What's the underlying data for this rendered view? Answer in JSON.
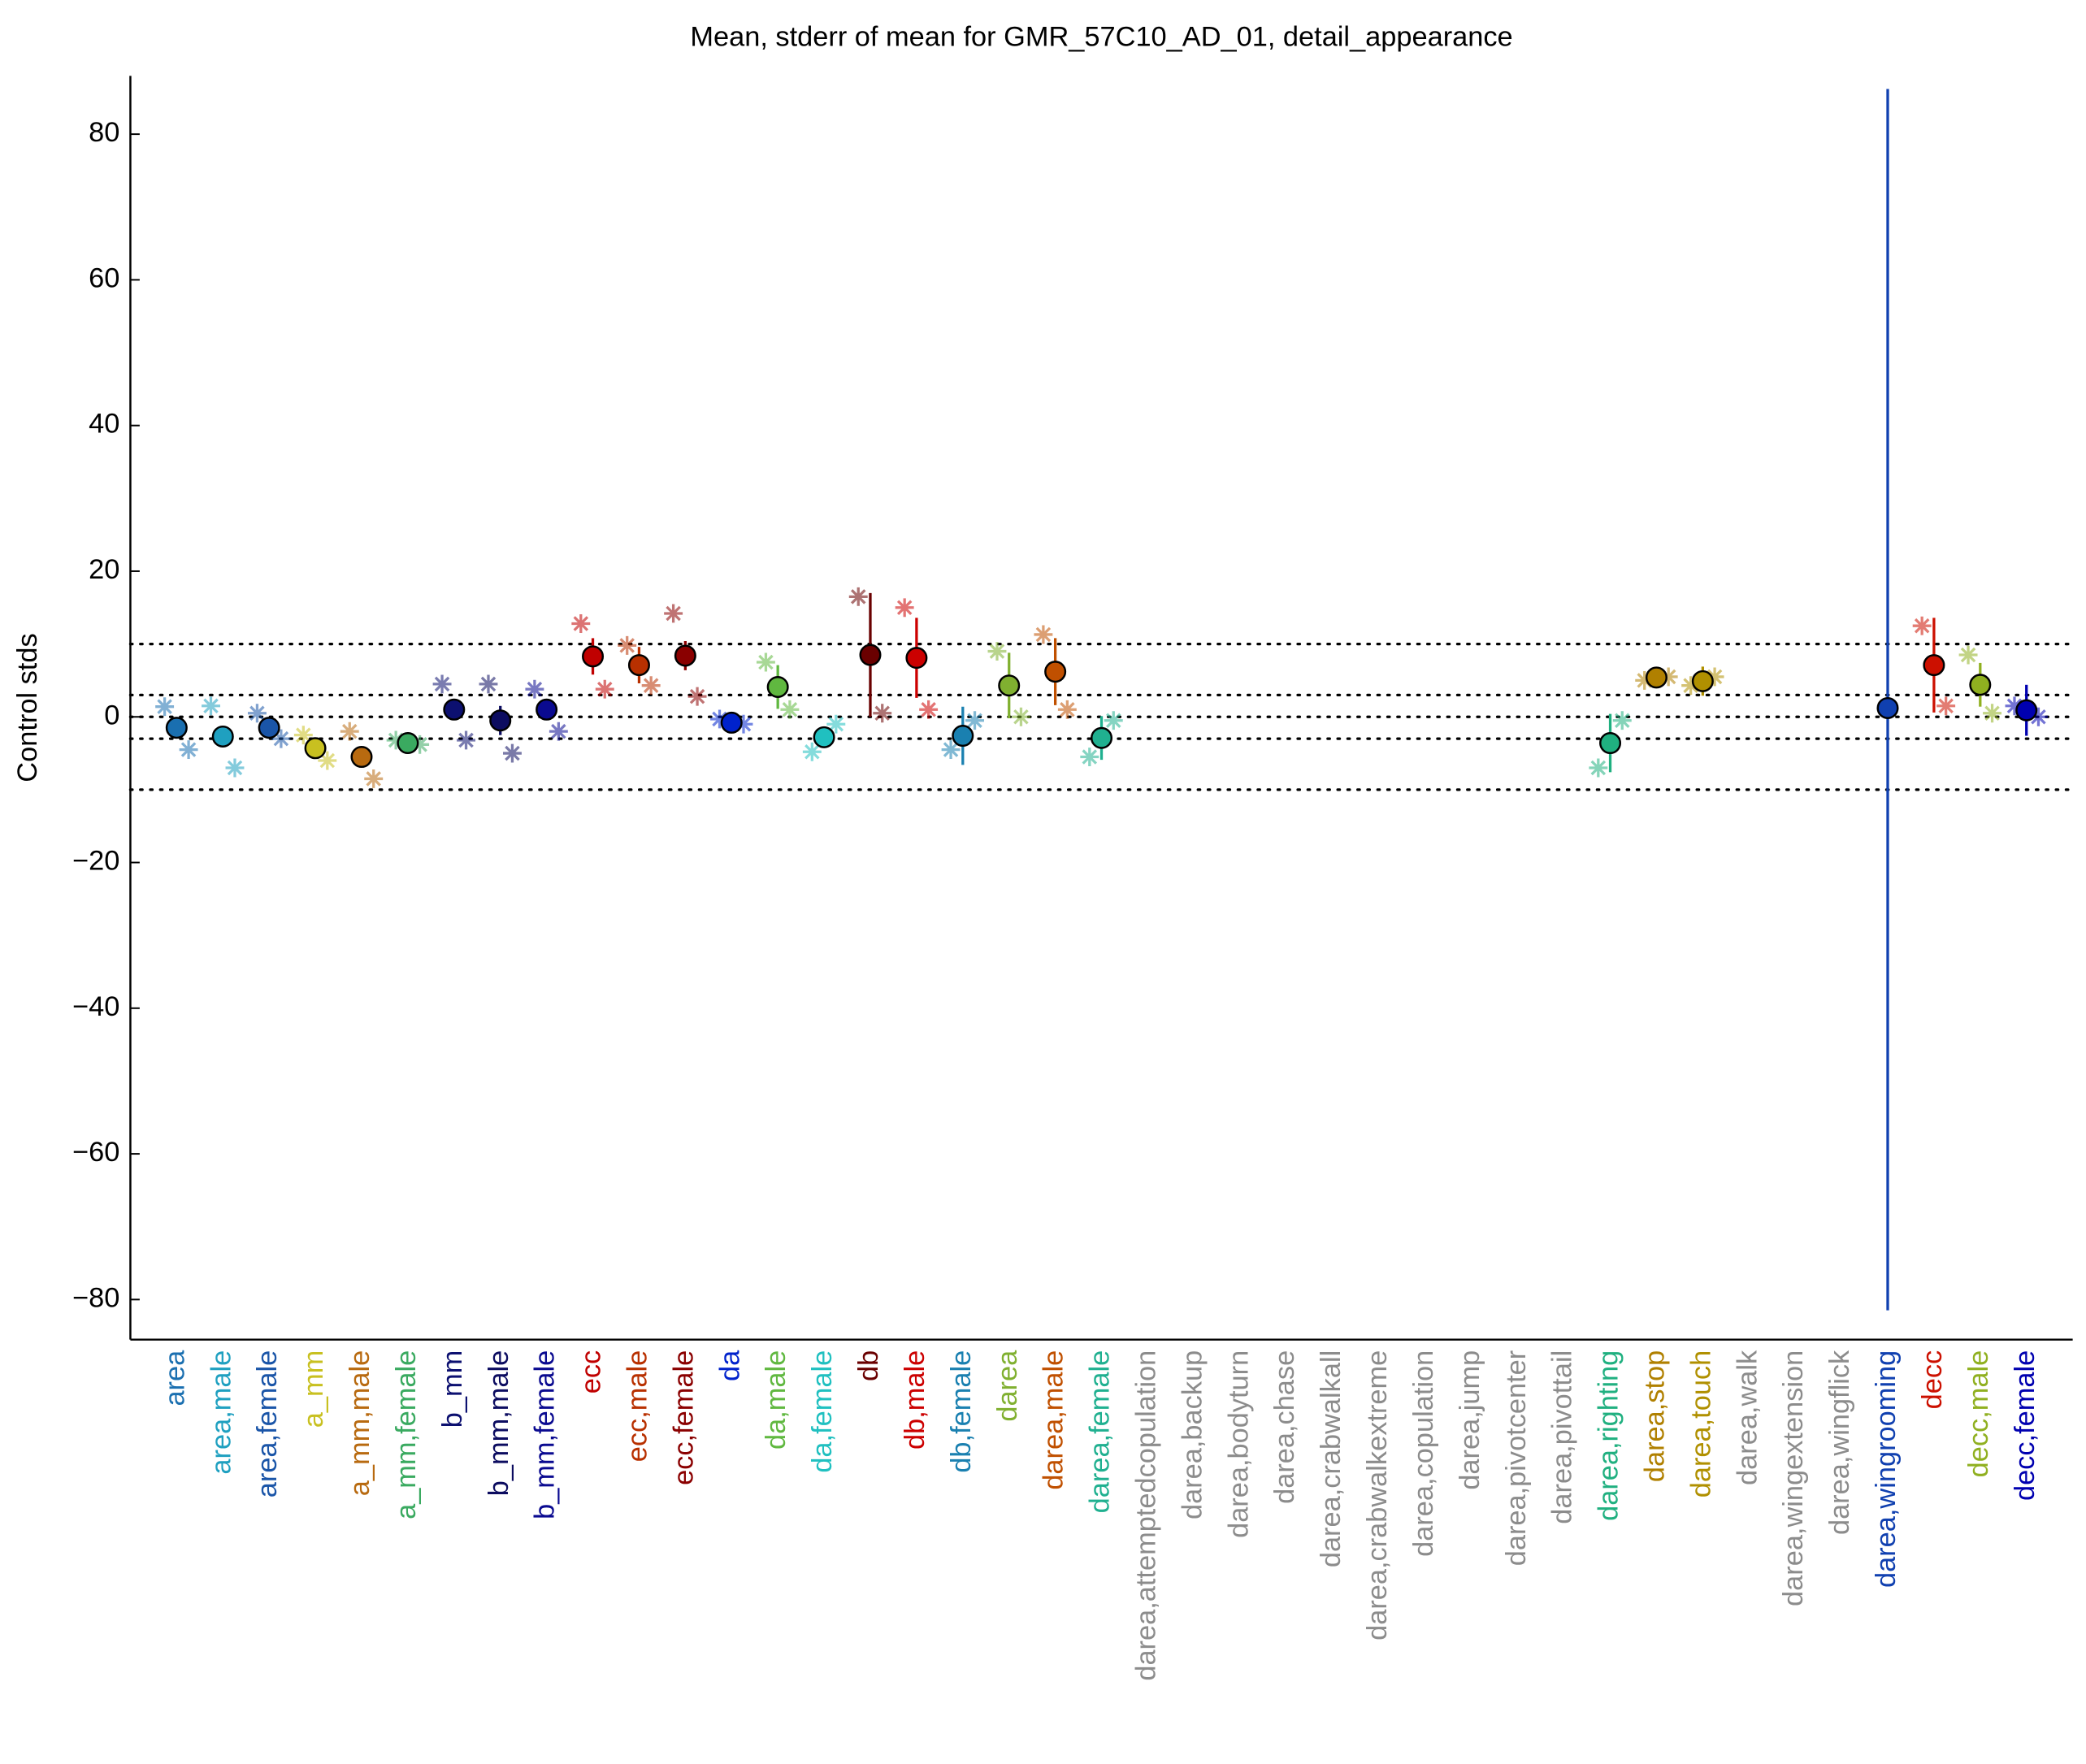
{
  "chart_data": {
    "type": "errorbar",
    "title": "Mean, stderr of mean for GMR_57C10_AD_01, detail_appearance",
    "ylabel": "Control stds",
    "categories": [
      "area",
      "area,male",
      "area,female",
      "a_mm",
      "a_mm,male",
      "a_mm,female",
      "b_mm",
      "b_mm,male",
      "b_mm,female",
      "ecc",
      "ecc,male",
      "ecc,female",
      "da",
      "da,male",
      "da,female",
      "db",
      "db,male",
      "db,female",
      "darea",
      "darea,male",
      "darea,female",
      "darea,attemptedcopulation",
      "darea,backup",
      "darea,bodyturn",
      "darea,chase",
      "darea,crabwalkall",
      "darea,crabwalkextreme",
      "darea,copulation",
      "darea,jump",
      "darea,pivotcenter",
      "darea,pivottail",
      "darea,righting",
      "darea,stop",
      "darea,touch",
      "darea,walk",
      "darea,wingextension",
      "darea,wingflick",
      "darea,wingrooming",
      "decc",
      "decc,male",
      "decc,female"
    ],
    "colors": [
      "#1a6fb0",
      "#1fa0c0",
      "#1a55a8",
      "#c8c020",
      "#b86a10",
      "#3aaa60",
      "#0c1070",
      "#0c0c60",
      "#0a0a90",
      "#c00000",
      "#b83000",
      "#8a0000",
      "#0022cc",
      "#60b840",
      "#20c0c0",
      "#6a0000",
      "#cc0000",
      "#1a80b0",
      "#80b030",
      "#c05000",
      "#20b090",
      "#8c8c8c",
      "#8c8c8c",
      "#8c8c8c",
      "#8c8c8c",
      "#8c8c8c",
      "#8c8c8c",
      "#8c8c8c",
      "#8c8c8c",
      "#8c8c8c",
      "#8c8c8c",
      "#20b080",
      "#b08000",
      "#b09000",
      "#8c8c8c",
      "#8c8c8c",
      "#8c8c8c",
      "#1040b0",
      "#cc1000",
      "#90b020",
      "#0000b0"
    ],
    "values": [
      -1.5,
      -2.7,
      -1.5,
      -4.3,
      -5.5,
      -3.6,
      1,
      -0.5,
      1,
      8.3,
      7.1,
      8.4,
      -0.8,
      4.1,
      -2.8,
      8.5,
      8.1,
      -2.6,
      4.3,
      6.2,
      -2.9,
      null,
      null,
      null,
      null,
      null,
      null,
      null,
      null,
      null,
      null,
      -3.6,
      5.4,
      4.9,
      null,
      null,
      null,
      1.2,
      7.1,
      4.4,
      0.9
    ],
    "errors": [
      1,
      0.8,
      0.8,
      0.8,
      1,
      0.8,
      0.8,
      2,
      0.8,
      2.5,
      2.5,
      2,
      0.5,
      3,
      1,
      8.5,
      5.5,
      4,
      4.5,
      4.6,
      3,
      null,
      null,
      null,
      null,
      null,
      null,
      null,
      null,
      null,
      null,
      4,
      1,
      2,
      null,
      null,
      null,
      85,
      6.5,
      3,
      3.5
    ],
    "asterisks_left": [
      1.4,
      1.5,
      0.5,
      -2.5,
      -2,
      -3.2,
      4.5,
      4.5,
      3.8,
      12.8,
      9.8,
      14.2,
      -0.3,
      7.5,
      -4.8,
      16.5,
      15,
      -4.5,
      9,
      11.3,
      -5.5,
      null,
      null,
      null,
      null,
      null,
      null,
      null,
      null,
      null,
      null,
      -7,
      5,
      4.3,
      null,
      null,
      null,
      null,
      12.5,
      8.5,
      1.5
    ],
    "asterisks_right": [
      -4.5,
      -7,
      -3,
      -6,
      -8.5,
      -3.8,
      -3.2,
      -5,
      -2,
      3.8,
      4.3,
      2.8,
      -1,
      1,
      -1,
      0.5,
      1,
      -0.5,
      0,
      1,
      -0.5,
      null,
      null,
      null,
      null,
      null,
      null,
      null,
      null,
      null,
      null,
      -0.5,
      5.5,
      5.5,
      null,
      null,
      null,
      null,
      1.5,
      0.5,
      0
    ],
    "reference_lines": [
      -10,
      -3,
      0,
      3,
      10
    ],
    "ylim": [
      -85.5,
      88
    ],
    "yticks": [
      {
        "value": -80,
        "label": "−80"
      },
      {
        "value": -60,
        "label": "−60"
      },
      {
        "value": -40,
        "label": "−40"
      },
      {
        "value": -20,
        "label": "−20"
      },
      0,
      20,
      40,
      60,
      80
    ]
  }
}
